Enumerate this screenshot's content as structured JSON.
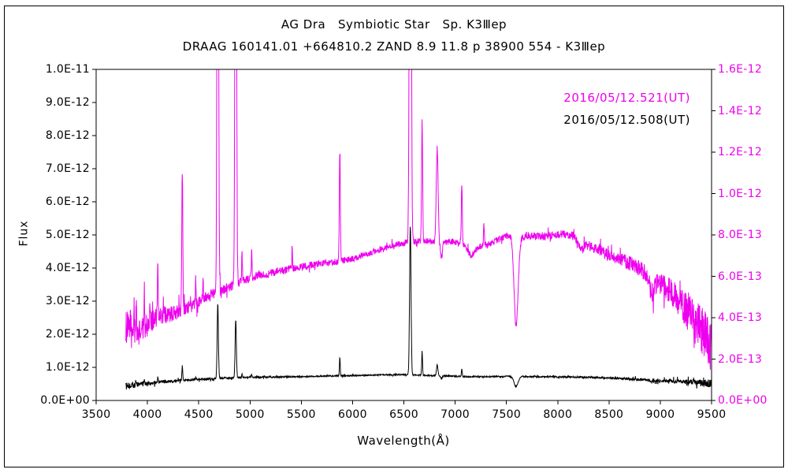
{
  "figure": {
    "background": "#ffffff",
    "border_color": "#000000"
  },
  "chart_data": {
    "type": "line",
    "title": "AG Dra   Symbiotic Star   Sp. K3Ⅲep",
    "subtitle": "DRAAG 160141.01 +664810.2 ZAND 8.9 11.8 p 38900 554 - K3Ⅲep",
    "xlabel": "Wavelength(Å)",
    "ylabel": "Flux",
    "grid": false,
    "legend_position": "top-right-inside",
    "x_axis": {
      "min": 3500,
      "max": 9500,
      "tick_values": [
        3500,
        4000,
        4500,
        5000,
        5500,
        6000,
        6500,
        7000,
        7500,
        8000,
        8500,
        9000,
        9500
      ],
      "tick_labels": [
        "3500",
        "4000",
        "4500",
        "5000",
        "5500",
        "6000",
        "6500",
        "7000",
        "7500",
        "8000",
        "8500",
        "9000",
        "9500"
      ]
    },
    "y_axis_left": {
      "min": 0,
      "max": 1e-11,
      "tick_values": [
        0,
        1e-12,
        2e-12,
        3e-12,
        4e-12,
        5e-12,
        6e-12,
        7e-12,
        8e-12,
        9e-12,
        1e-11
      ],
      "tick_labels": [
        "0.0E+00",
        "1.0E-12",
        "2.0E-12",
        "3.0E-12",
        "4.0E-12",
        "5.0E-12",
        "6.0E-12",
        "7.0E-12",
        "8.0E-12",
        "9.0E-12",
        "1.0E-11"
      ],
      "color": "#000000"
    },
    "y_axis_right": {
      "min": 0,
      "max": 1.6e-12,
      "tick_values": [
        0,
        2e-13,
        4e-13,
        6e-13,
        8e-13,
        1e-12,
        1.2e-12,
        1.4e-12,
        1.6e-12
      ],
      "tick_labels": [
        "0.0E+00",
        "2.0E-13",
        "4.0E-13",
        "6.0E-13",
        "8.0E-13",
        "1.0E-12",
        "1.2E-12",
        "1.4E-12",
        "1.6E-12"
      ],
      "color": "#ee00ee"
    },
    "legend": [
      {
        "label": "2016/05/12.521(UT)",
        "color": "#ee00ee"
      },
      {
        "label": "2016/05/12.508(UT)",
        "color": "#000000"
      }
    ],
    "series_format": {
      "continuum": "[wavelength_A, flux_in_scale_units]",
      "emission_lines": "[center_A, peak_amplitude_in_scale_units, sigma_A]",
      "absorption_bands": "[center_A, negative_depth_in_scale_units, sigma_A]",
      "noise": "[wavelength_A, noise_amplitude_in_scale_units]"
    },
    "series": [
      {
        "name": "2016/05/12.521(UT)",
        "color": "#ee00ee",
        "axis": "right",
        "scale": 1e-13,
        "x_start": 3790,
        "x_end": 9515,
        "continuum": [
          [
            3790,
            3.6
          ],
          [
            3850,
            3.1
          ],
          [
            3950,
            3.4
          ],
          [
            4050,
            3.9
          ],
          [
            4150,
            4.1
          ],
          [
            4250,
            4.2
          ],
          [
            4350,
            4.4
          ],
          [
            4450,
            4.6
          ],
          [
            4550,
            5.0
          ],
          [
            4650,
            5.2
          ],
          [
            4750,
            5.4
          ],
          [
            4850,
            5.6
          ],
          [
            4950,
            5.8
          ],
          [
            5050,
            6.0
          ],
          [
            5150,
            6.1
          ],
          [
            5250,
            6.2
          ],
          [
            5350,
            6.3
          ],
          [
            5450,
            6.4
          ],
          [
            5550,
            6.5
          ],
          [
            5650,
            6.6
          ],
          [
            5750,
            6.65
          ],
          [
            5850,
            6.7
          ],
          [
            5950,
            6.8
          ],
          [
            6050,
            6.9
          ],
          [
            6150,
            7.1
          ],
          [
            6250,
            7.25
          ],
          [
            6350,
            7.4
          ],
          [
            6450,
            7.55
          ],
          [
            6550,
            7.65
          ],
          [
            6650,
            7.7
          ],
          [
            6750,
            7.7
          ],
          [
            6850,
            7.55
          ],
          [
            6950,
            7.7
          ],
          [
            7050,
            7.6
          ],
          [
            7150,
            7.35
          ],
          [
            7250,
            7.45
          ],
          [
            7350,
            7.6
          ],
          [
            7450,
            7.85
          ],
          [
            7550,
            8.05
          ],
          [
            7650,
            7.9
          ],
          [
            7750,
            7.95
          ],
          [
            7850,
            7.9
          ],
          [
            7950,
            8.0
          ],
          [
            8050,
            8.05
          ],
          [
            8150,
            7.95
          ],
          [
            8250,
            7.6
          ],
          [
            8350,
            7.35
          ],
          [
            8450,
            7.15
          ],
          [
            8550,
            6.95
          ],
          [
            8650,
            6.75
          ],
          [
            8750,
            6.5
          ],
          [
            8850,
            6.2
          ],
          [
            8950,
            5.8
          ],
          [
            9050,
            5.5
          ],
          [
            9150,
            5.0
          ],
          [
            9250,
            4.4
          ],
          [
            9350,
            3.7
          ],
          [
            9450,
            3.0
          ],
          [
            9515,
            2.5
          ]
        ],
        "emission_lines": [
          [
            3835,
            1.2,
            3
          ],
          [
            3869,
            1.6,
            3
          ],
          [
            3889,
            1.9,
            3
          ],
          [
            3970,
            1.7,
            3
          ],
          [
            4026,
            1.0,
            3
          ],
          [
            4101,
            2.3,
            4
          ],
          [
            4340,
            6.8,
            5
          ],
          [
            4471,
            1.3,
            3
          ],
          [
            4542,
            0.8,
            3
          ],
          [
            4686,
            30,
            7
          ],
          [
            4861,
            30,
            7
          ],
          [
            4922,
            1.4,
            3
          ],
          [
            5016,
            1.4,
            3
          ],
          [
            5411,
            1.0,
            3
          ],
          [
            5876,
            5.3,
            5
          ],
          [
            6563,
            34,
            8
          ],
          [
            6678,
            5.8,
            5
          ],
          [
            6825,
            4.6,
            9
          ],
          [
            7065,
            2.8,
            5
          ],
          [
            7281,
            1.0,
            4
          ]
        ],
        "absorption_bands": [
          [
            6867,
            -0.7,
            8
          ],
          [
            7160,
            -0.35,
            30
          ],
          [
            7594,
            -4.4,
            20
          ],
          [
            8230,
            -0.35,
            22
          ],
          [
            8920,
            -0.7,
            25
          ]
        ],
        "noise": [
          [
            3790,
            0.85
          ],
          [
            3900,
            0.65
          ],
          [
            4100,
            0.45
          ],
          [
            4400,
            0.3
          ],
          [
            5000,
            0.2
          ],
          [
            6000,
            0.15
          ],
          [
            7000,
            0.15
          ],
          [
            8000,
            0.18
          ],
          [
            8600,
            0.3
          ],
          [
            9000,
            0.5
          ],
          [
            9200,
            0.75
          ],
          [
            9350,
            1.1
          ],
          [
            9515,
            1.4
          ]
        ]
      },
      {
        "name": "2016/05/12.508(UT)",
        "color": "#000000",
        "axis": "left",
        "scale": 1e-12,
        "x_start": 3790,
        "x_end": 9515,
        "continuum": [
          [
            3790,
            0.42
          ],
          [
            3900,
            0.48
          ],
          [
            4000,
            0.52
          ],
          [
            4150,
            0.56
          ],
          [
            4300,
            0.6
          ],
          [
            4450,
            0.63
          ],
          [
            4600,
            0.65
          ],
          [
            4800,
            0.68
          ],
          [
            5000,
            0.7
          ],
          [
            5250,
            0.71
          ],
          [
            5500,
            0.72
          ],
          [
            5750,
            0.74
          ],
          [
            6000,
            0.75
          ],
          [
            6250,
            0.77
          ],
          [
            6500,
            0.78
          ],
          [
            6700,
            0.76
          ],
          [
            6900,
            0.74
          ],
          [
            7100,
            0.72
          ],
          [
            7300,
            0.72
          ],
          [
            7500,
            0.73
          ],
          [
            7700,
            0.72
          ],
          [
            7900,
            0.72
          ],
          [
            8100,
            0.71
          ],
          [
            8300,
            0.7
          ],
          [
            8500,
            0.68
          ],
          [
            8700,
            0.65
          ],
          [
            8900,
            0.62
          ],
          [
            9100,
            0.58
          ],
          [
            9300,
            0.55
          ],
          [
            9515,
            0.5
          ]
        ],
        "emission_lines": [
          [
            3889,
            0.12,
            3
          ],
          [
            3970,
            0.1,
            3
          ],
          [
            4101,
            0.15,
            3
          ],
          [
            4340,
            0.42,
            4
          ],
          [
            4471,
            0.08,
            3
          ],
          [
            4686,
            2.25,
            6
          ],
          [
            4861,
            1.75,
            6
          ],
          [
            4922,
            0.1,
            3
          ],
          [
            5016,
            0.1,
            3
          ],
          [
            5876,
            0.55,
            4
          ],
          [
            6563,
            4.5,
            7
          ],
          [
            6678,
            0.72,
            4
          ],
          [
            6825,
            0.32,
            7
          ],
          [
            7065,
            0.22,
            4
          ]
        ],
        "absorption_bands": [
          [
            6867,
            -0.08,
            8
          ],
          [
            7594,
            -0.3,
            20
          ],
          [
            8920,
            -0.05,
            25
          ]
        ],
        "noise": [
          [
            3790,
            0.11
          ],
          [
            3900,
            0.08
          ],
          [
            4100,
            0.05
          ],
          [
            4400,
            0.035
          ],
          [
            5000,
            0.025
          ],
          [
            6000,
            0.02
          ],
          [
            7000,
            0.02
          ],
          [
            8000,
            0.022
          ],
          [
            8600,
            0.03
          ],
          [
            9000,
            0.045
          ],
          [
            9200,
            0.065
          ],
          [
            9350,
            0.09
          ],
          [
            9515,
            0.13
          ]
        ]
      }
    ]
  }
}
